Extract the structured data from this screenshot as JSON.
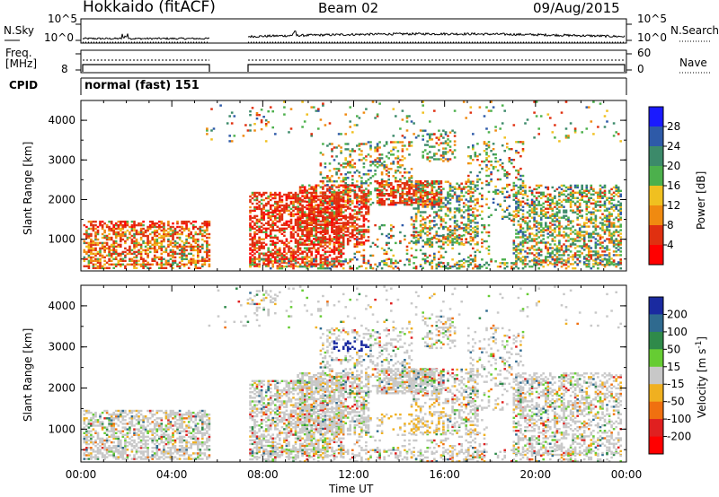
{
  "header": {
    "station": "Hokkaido (fitACF)",
    "beam": "Beam 02",
    "date": "09/Aug/2015"
  },
  "noise_panel": {
    "left_label": "N.Sky",
    "right_label": "N.Search",
    "left_ticks": [
      "10^5",
      "10^0"
    ],
    "right_ticks": [
      "10^5",
      "10^0"
    ]
  },
  "freq_panel": {
    "left_label_1": "Freq.",
    "left_label_2": "[MHz]",
    "left_tick": "8",
    "right_label": "Nave",
    "right_ticks": [
      "60",
      "0"
    ]
  },
  "cpid_panel": {
    "label": "CPID",
    "value": "normal (fast) 151"
  },
  "chart_data": [
    {
      "type": "heatmap",
      "ylabel": "Slant Range [km]",
      "yticks": [
        "1000",
        "2000",
        "3000",
        "4000"
      ],
      "ylim": [
        200,
        4500
      ],
      "colorbar_label": "Power [dB]",
      "colorbar_ticks": [
        "4",
        "8",
        "12",
        "16",
        "20",
        "24",
        "28"
      ],
      "colors": [
        "#1a1aff",
        "#2e5aa8",
        "#3c8a6a",
        "#4cb04c",
        "#f0c020",
        "#f08a10",
        "#e03010",
        "#ff0000"
      ],
      "data_gap": [
        "05:40",
        "07:25"
      ]
    },
    {
      "type": "heatmap",
      "ylabel": "Slant Range [km]",
      "yticks": [
        "1000",
        "2000",
        "3000",
        "4000"
      ],
      "ylim": [
        200,
        4500
      ],
      "colorbar_label": "Velocity [m s",
      "colorbar_label_sup": "-1",
      "colorbar_label_end": "]",
      "colorbar_ticks": [
        "200",
        "100",
        "50",
        "15",
        "-15",
        "-50",
        "-100",
        "-200"
      ],
      "colors": [
        "#1a2aa0",
        "#2f6a8f",
        "#2f8a4a",
        "#66cc33",
        "#c8c8c8",
        "#f0b020",
        "#f07010",
        "#e02020",
        "#ff0000"
      ]
    }
  ],
  "x_axis": {
    "ticks": [
      "00:00",
      "04:00",
      "08:00",
      "12:00",
      "16:00",
      "20:00",
      "00:00"
    ],
    "label": "Time UT"
  }
}
